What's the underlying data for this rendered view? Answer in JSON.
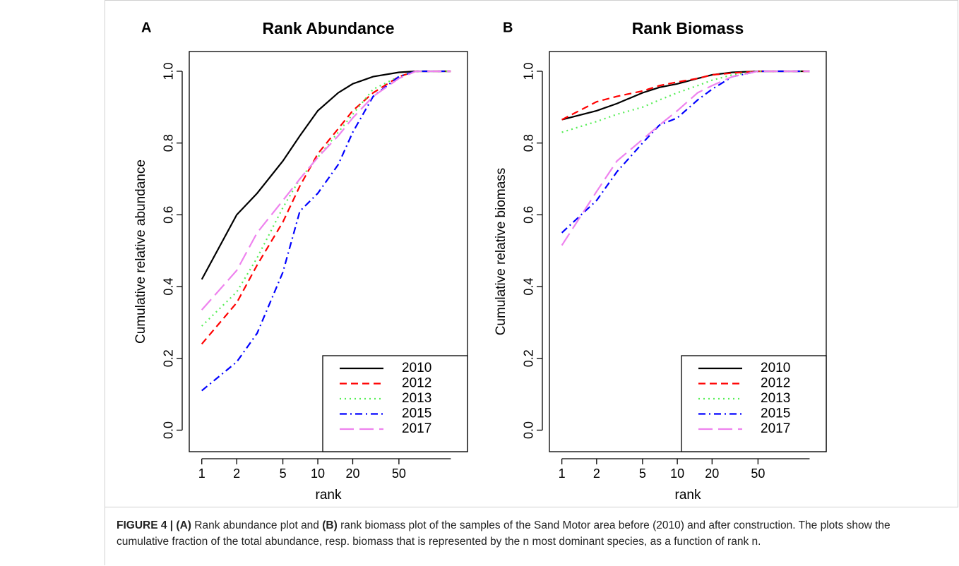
{
  "chart_data": [
    {
      "type": "line",
      "panel": "A",
      "title": "Rank Abundance",
      "xlabel": "rank",
      "ylabel": "Cumulative relative abundance",
      "log_x": true,
      "legend": "bottom right",
      "x": [
        1,
        2,
        3,
        5,
        7,
        10,
        15,
        20,
        30,
        50,
        70,
        140
      ],
      "xlim": [
        0.78,
        195
      ],
      "xticks": [
        1,
        2,
        5,
        10,
        20,
        50
      ],
      "ylim": [
        -0.06,
        1.055
      ],
      "yticks": [
        {
          "value": 0,
          "label": "0.0"
        },
        0.2,
        0.4,
        0.6,
        0.8,
        {
          "value": 1,
          "label": "1.0"
        }
      ],
      "series": [
        {
          "name": "2010",
          "color": "#000000",
          "dash": "solid",
          "values": [
            0.42,
            0.6,
            0.66,
            0.75,
            0.82,
            0.89,
            0.94,
            0.965,
            0.985,
            0.997,
            1.0,
            1.0
          ]
        },
        {
          "name": "2012",
          "color": "#ff0000",
          "dash": "dashed",
          "values": [
            0.24,
            0.355,
            0.46,
            0.58,
            0.68,
            0.77,
            0.84,
            0.89,
            0.94,
            0.985,
            1.0,
            1.0
          ]
        },
        {
          "name": "2013",
          "color": "#55ee55",
          "dash": "dotted",
          "values": [
            0.29,
            0.385,
            0.48,
            0.62,
            0.7,
            0.76,
            0.83,
            0.88,
            0.95,
            0.985,
            1.0,
            1.0
          ]
        },
        {
          "name": "2015",
          "color": "#0000ff",
          "dash": "dashdot",
          "values": [
            0.11,
            0.19,
            0.27,
            0.44,
            0.61,
            0.66,
            0.74,
            0.83,
            0.93,
            0.985,
            1.0,
            1.0
          ]
        },
        {
          "name": "2017",
          "color": "#ee82ee",
          "dash": "longdash",
          "values": [
            0.335,
            0.445,
            0.55,
            0.64,
            0.7,
            0.76,
            0.82,
            0.87,
            0.93,
            0.98,
            1.0,
            1.0
          ]
        }
      ]
    },
    {
      "type": "line",
      "panel": "B",
      "title": "Rank Biomass",
      "xlabel": "rank",
      "ylabel": "Cumulative relative biomass",
      "log_x": true,
      "legend": "bottom right",
      "x": [
        1,
        2,
        3,
        5,
        7,
        10,
        15,
        20,
        30,
        50,
        70,
        140
      ],
      "xlim": [
        0.78,
        195
      ],
      "xticks": [
        1,
        2,
        5,
        10,
        20,
        50
      ],
      "ylim": [
        -0.06,
        1.055
      ],
      "yticks": [
        {
          "value": 0,
          "label": "0.0"
        },
        0.2,
        0.4,
        0.6,
        0.8,
        {
          "value": 1,
          "label": "1.0"
        }
      ],
      "series": [
        {
          "name": "2010",
          "color": "#000000",
          "dash": "solid",
          "values": [
            0.865,
            0.89,
            0.91,
            0.94,
            0.955,
            0.965,
            0.98,
            0.99,
            0.997,
            1.0,
            1.0,
            1.0
          ]
        },
        {
          "name": "2012",
          "color": "#ff0000",
          "dash": "dashed",
          "values": [
            0.865,
            0.915,
            0.93,
            0.945,
            0.96,
            0.97,
            0.98,
            0.99,
            0.995,
            1.0,
            1.0,
            1.0
          ]
        },
        {
          "name": "2013",
          "color": "#55ee55",
          "dash": "dotted",
          "values": [
            0.83,
            0.86,
            0.88,
            0.9,
            0.92,
            0.94,
            0.96,
            0.975,
            0.99,
            1.0,
            1.0,
            1.0
          ]
        },
        {
          "name": "2015",
          "color": "#0000ff",
          "dash": "dashdot",
          "values": [
            0.55,
            0.64,
            0.72,
            0.8,
            0.85,
            0.87,
            0.92,
            0.95,
            0.985,
            1.0,
            1.0,
            1.0
          ]
        },
        {
          "name": "2017",
          "color": "#ee82ee",
          "dash": "longdash",
          "values": [
            0.515,
            0.665,
            0.75,
            0.81,
            0.85,
            0.89,
            0.94,
            0.96,
            0.985,
            1.0,
            1.0,
            1.0
          ]
        }
      ]
    }
  ],
  "caption": {
    "parts": [
      {
        "text": "FIGURE 4 | (A)",
        "bold": true
      },
      {
        "text": " Rank abundance plot and ",
        "bold": false
      },
      {
        "text": "(B)",
        "bold": true
      },
      {
        "text": " rank biomass plot of the samples of the Sand Motor area before (2010) and after construction. The plots show the cumulative fraction of the total abundance, resp. biomass that is represented by the n most dominant species, as a function of rank n.",
        "bold": false
      }
    ]
  }
}
